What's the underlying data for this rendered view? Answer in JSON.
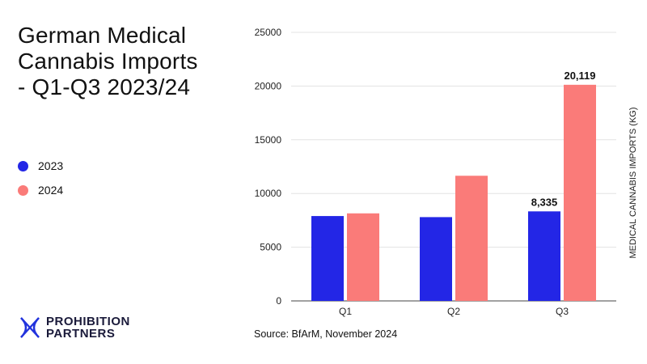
{
  "title_lines": [
    "German Medical",
    "Cannabis Imports",
    "- Q1-Q3 2023/24"
  ],
  "source": "Source: BfArM, November 2024",
  "logo": {
    "line1": "PROHIBITION",
    "line2": "PARTNERS",
    "icon": "x-cross-logo-icon",
    "color": "#2233dd"
  },
  "colors": {
    "2023": "#2326e6",
    "2024": "#fa7b79"
  },
  "chart_data": {
    "type": "bar",
    "title": "German Medical Cannabis Imports - Q1-Q3 2023/24",
    "categories": [
      "Q1",
      "Q2",
      "Q3"
    ],
    "series": [
      {
        "name": "2023",
        "values": [
          7900,
          7800,
          8335
        ]
      },
      {
        "name": "2024",
        "values": [
          8150,
          11650,
          20119
        ]
      }
    ],
    "data_labels": [
      {
        "series": 0,
        "index": 2,
        "text": "8,335"
      },
      {
        "series": 1,
        "index": 2,
        "text": "20,119"
      }
    ],
    "ylabel": "MEDICAL CANNABIS IMPORTS (KG)",
    "xlabel": "",
    "ylim": [
      0,
      25000
    ],
    "yticks": [
      0,
      5000,
      10000,
      15000,
      20000,
      25000
    ],
    "grid": true,
    "legend": "left"
  }
}
